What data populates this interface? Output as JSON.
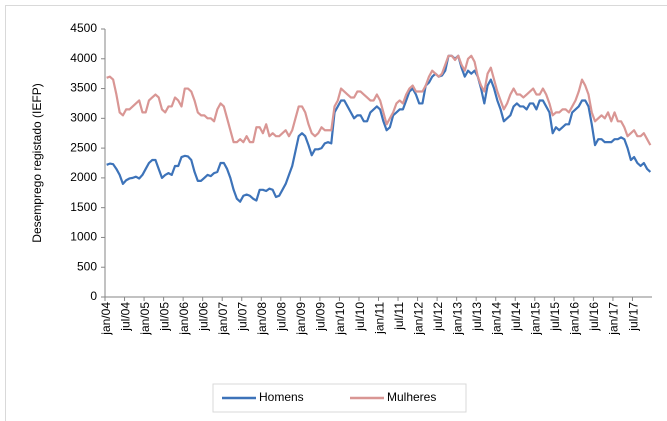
{
  "chart_data": {
    "type": "line",
    "y_label": "Desemprego registado (IEFP)",
    "categories": [
      "jan/04",
      null,
      null,
      null,
      null,
      null,
      "jul/04",
      null,
      null,
      null,
      null,
      null,
      "jan/05",
      null,
      null,
      null,
      null,
      null,
      "jul/05",
      null,
      null,
      null,
      null,
      null,
      "jan/06",
      null,
      null,
      null,
      null,
      null,
      "jul/06",
      null,
      null,
      null,
      null,
      null,
      "jan/07",
      null,
      null,
      null,
      null,
      null,
      "jul/07",
      null,
      null,
      null,
      null,
      null,
      "jan/08",
      null,
      null,
      null,
      null,
      null,
      "jul/08",
      null,
      null,
      null,
      null,
      null,
      "jan/09",
      null,
      null,
      null,
      null,
      null,
      "jul/09",
      null,
      null,
      null,
      null,
      null,
      "jan/10",
      null,
      null,
      null,
      null,
      null,
      "jul/10",
      null,
      null,
      null,
      null,
      null,
      "jan/11",
      null,
      null,
      null,
      null,
      null,
      "jul/11",
      null,
      null,
      null,
      null,
      null,
      "jan/12",
      null,
      null,
      null,
      null,
      null,
      "jul/12",
      null,
      null,
      null,
      null,
      null,
      "jan/13",
      null,
      null,
      null,
      null,
      null,
      "jul/13",
      null,
      null,
      null,
      null,
      null,
      "jan/14",
      null,
      null,
      null,
      null,
      null,
      "jul/14",
      null,
      null,
      null,
      null,
      null,
      "jan/15",
      null,
      null,
      null,
      null,
      null,
      "jul/15",
      null,
      null,
      null,
      null,
      null,
      "jan/16",
      null,
      null,
      null,
      null,
      null,
      "jul/16",
      null,
      null,
      null,
      null,
      null,
      "jan/17",
      null,
      null,
      null,
      null,
      null,
      "jul/17",
      null,
      null,
      null,
      null,
      null
    ],
    "series": [
      {
        "name": "Homens",
        "color": "#3d73b9",
        "values": [
          2220,
          2240,
          2230,
          2150,
          2050,
          1900,
          1960,
          1990,
          2000,
          2020,
          1990,
          2050,
          2150,
          2250,
          2300,
          2300,
          2150,
          2000,
          2050,
          2080,
          2050,
          2200,
          2200,
          2350,
          2370,
          2360,
          2300,
          2100,
          1950,
          1950,
          2000,
          2050,
          2030,
          2080,
          2100,
          2250,
          2250,
          2150,
          2000,
          1800,
          1650,
          1600,
          1700,
          1720,
          1700,
          1650,
          1620,
          1800,
          1800,
          1780,
          1820,
          1800,
          1680,
          1700,
          1800,
          1900,
          2050,
          2200,
          2450,
          2700,
          2750,
          2700,
          2550,
          2380,
          2480,
          2480,
          2500,
          2580,
          2600,
          2580,
          3100,
          3200,
          3300,
          3300,
          3200,
          3100,
          3000,
          3050,
          3050,
          2950,
          2950,
          3100,
          3150,
          3200,
          3150,
          2950,
          2800,
          2850,
          3050,
          3100,
          3150,
          3150,
          3300,
          3450,
          3500,
          3400,
          3250,
          3250,
          3550,
          3600,
          3700,
          3750,
          3700,
          3720,
          3800,
          4050,
          4050,
          4000,
          4050,
          3850,
          3700,
          3800,
          3750,
          3800,
          3700,
          3500,
          3250,
          3550,
          3650,
          3500,
          3300,
          3150,
          2950,
          3000,
          3050,
          3200,
          3250,
          3200,
          3200,
          3150,
          3250,
          3250,
          3150,
          3300,
          3300,
          3200,
          3100,
          2750,
          2850,
          2800,
          2850,
          2900,
          2900,
          3100,
          3150,
          3200,
          3300,
          3300,
          3200,
          2900,
          2550,
          2650,
          2650,
          2600,
          2600,
          2600,
          2650,
          2650,
          2680,
          2650,
          2500,
          2300,
          2350,
          2250,
          2200,
          2250,
          2150,
          2100
        ]
      },
      {
        "name": "Mulheres",
        "color": "#d99694",
        "values": [
          3680,
          3700,
          3650,
          3400,
          3100,
          3050,
          3150,
          3150,
          3200,
          3250,
          3300,
          3100,
          3100,
          3300,
          3350,
          3400,
          3350,
          3150,
          3100,
          3200,
          3200,
          3350,
          3300,
          3200,
          3500,
          3500,
          3450,
          3300,
          3100,
          3050,
          3050,
          3000,
          3000,
          2950,
          3150,
          3250,
          3200,
          3000,
          2800,
          2600,
          2600,
          2650,
          2600,
          2700,
          2600,
          2600,
          2850,
          2850,
          2750,
          2900,
          2700,
          2750,
          2700,
          2700,
          2750,
          2800,
          2700,
          2800,
          3000,
          3200,
          3200,
          3100,
          2900,
          2750,
          2700,
          2750,
          2850,
          2800,
          2800,
          2800,
          3200,
          3300,
          3500,
          3450,
          3400,
          3350,
          3350,
          3450,
          3450,
          3400,
          3350,
          3300,
          3300,
          3400,
          3300,
          3100,
          2900,
          3000,
          3100,
          3250,
          3300,
          3250,
          3400,
          3500,
          3550,
          3450,
          3450,
          3450,
          3550,
          3700,
          3800,
          3750,
          3700,
          3750,
          3900,
          4050,
          4050,
          3980,
          4050,
          3900,
          3800,
          4000,
          4050,
          3950,
          3700,
          3550,
          3450,
          3750,
          3850,
          3650,
          3450,
          3300,
          3150,
          3250,
          3400,
          3500,
          3400,
          3400,
          3350,
          3400,
          3450,
          3500,
          3400,
          3400,
          3500,
          3400,
          3250,
          3050,
          3100,
          3100,
          3150,
          3150,
          3100,
          3200,
          3300,
          3450,
          3650,
          3550,
          3400,
          3100,
          2950,
          3000,
          3050,
          3000,
          3100,
          2950,
          3100,
          2950,
          2950,
          2850,
          2700,
          2750,
          2800,
          2700,
          2700,
          2750,
          2650,
          2550
        ]
      }
    ],
    "ylim": [
      0,
      4500
    ],
    "yticks": [
      0,
      500,
      1000,
      1500,
      2000,
      2500,
      3000,
      3500,
      4000,
      4500
    ],
    "legend": "bottom"
  }
}
